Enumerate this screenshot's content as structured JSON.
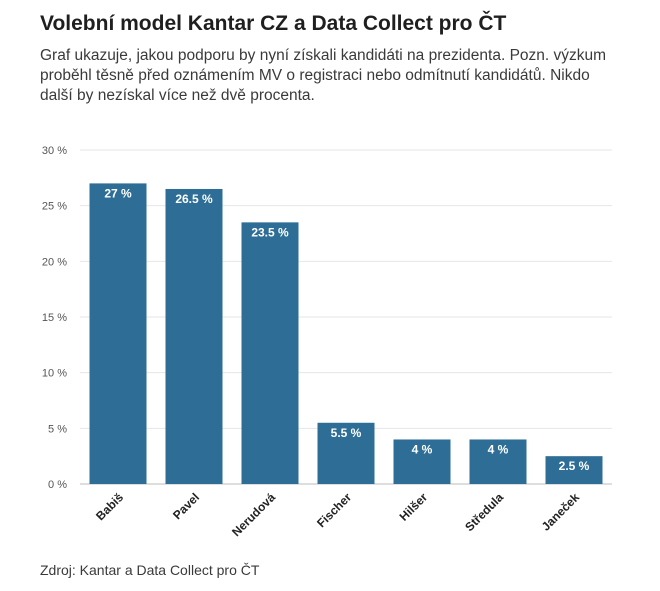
{
  "title": "Volební model Kantar CZ a Data Collect pro ČT",
  "subtitle": "Graf ukazuje, jakou podporu by nyní získali kandidáti na prezidenta. Pozn. výzkum proběhl těsně před oznámením MV o registraci nebo odmítnutí kandidátů. Nikdo další by nezískal více než dvě procenta.",
  "source": "Zdroj: Kantar a Data Collect pro ČT",
  "chart_data": {
    "type": "bar",
    "categories": [
      "Babiš",
      "Pavel",
      "Nerudová",
      "Fischer",
      "Hilšer",
      "Středula",
      "Janeček"
    ],
    "values": [
      27,
      26.5,
      23.5,
      5.5,
      4,
      4,
      2.5
    ],
    "data_labels": [
      "27 %",
      "26.5 %",
      "23.5 %",
      "5.5 %",
      "4 %",
      "4 %",
      "2.5 %"
    ],
    "yticks": [
      0,
      5,
      10,
      15,
      20,
      25,
      30
    ],
    "ytick_labels": [
      "0 %",
      "5 %",
      "10 %",
      "15 %",
      "20 %",
      "25 %",
      "30 %"
    ],
    "ylim": [
      0,
      30
    ],
    "grid": true,
    "bar_color": "#2e6e96"
  }
}
